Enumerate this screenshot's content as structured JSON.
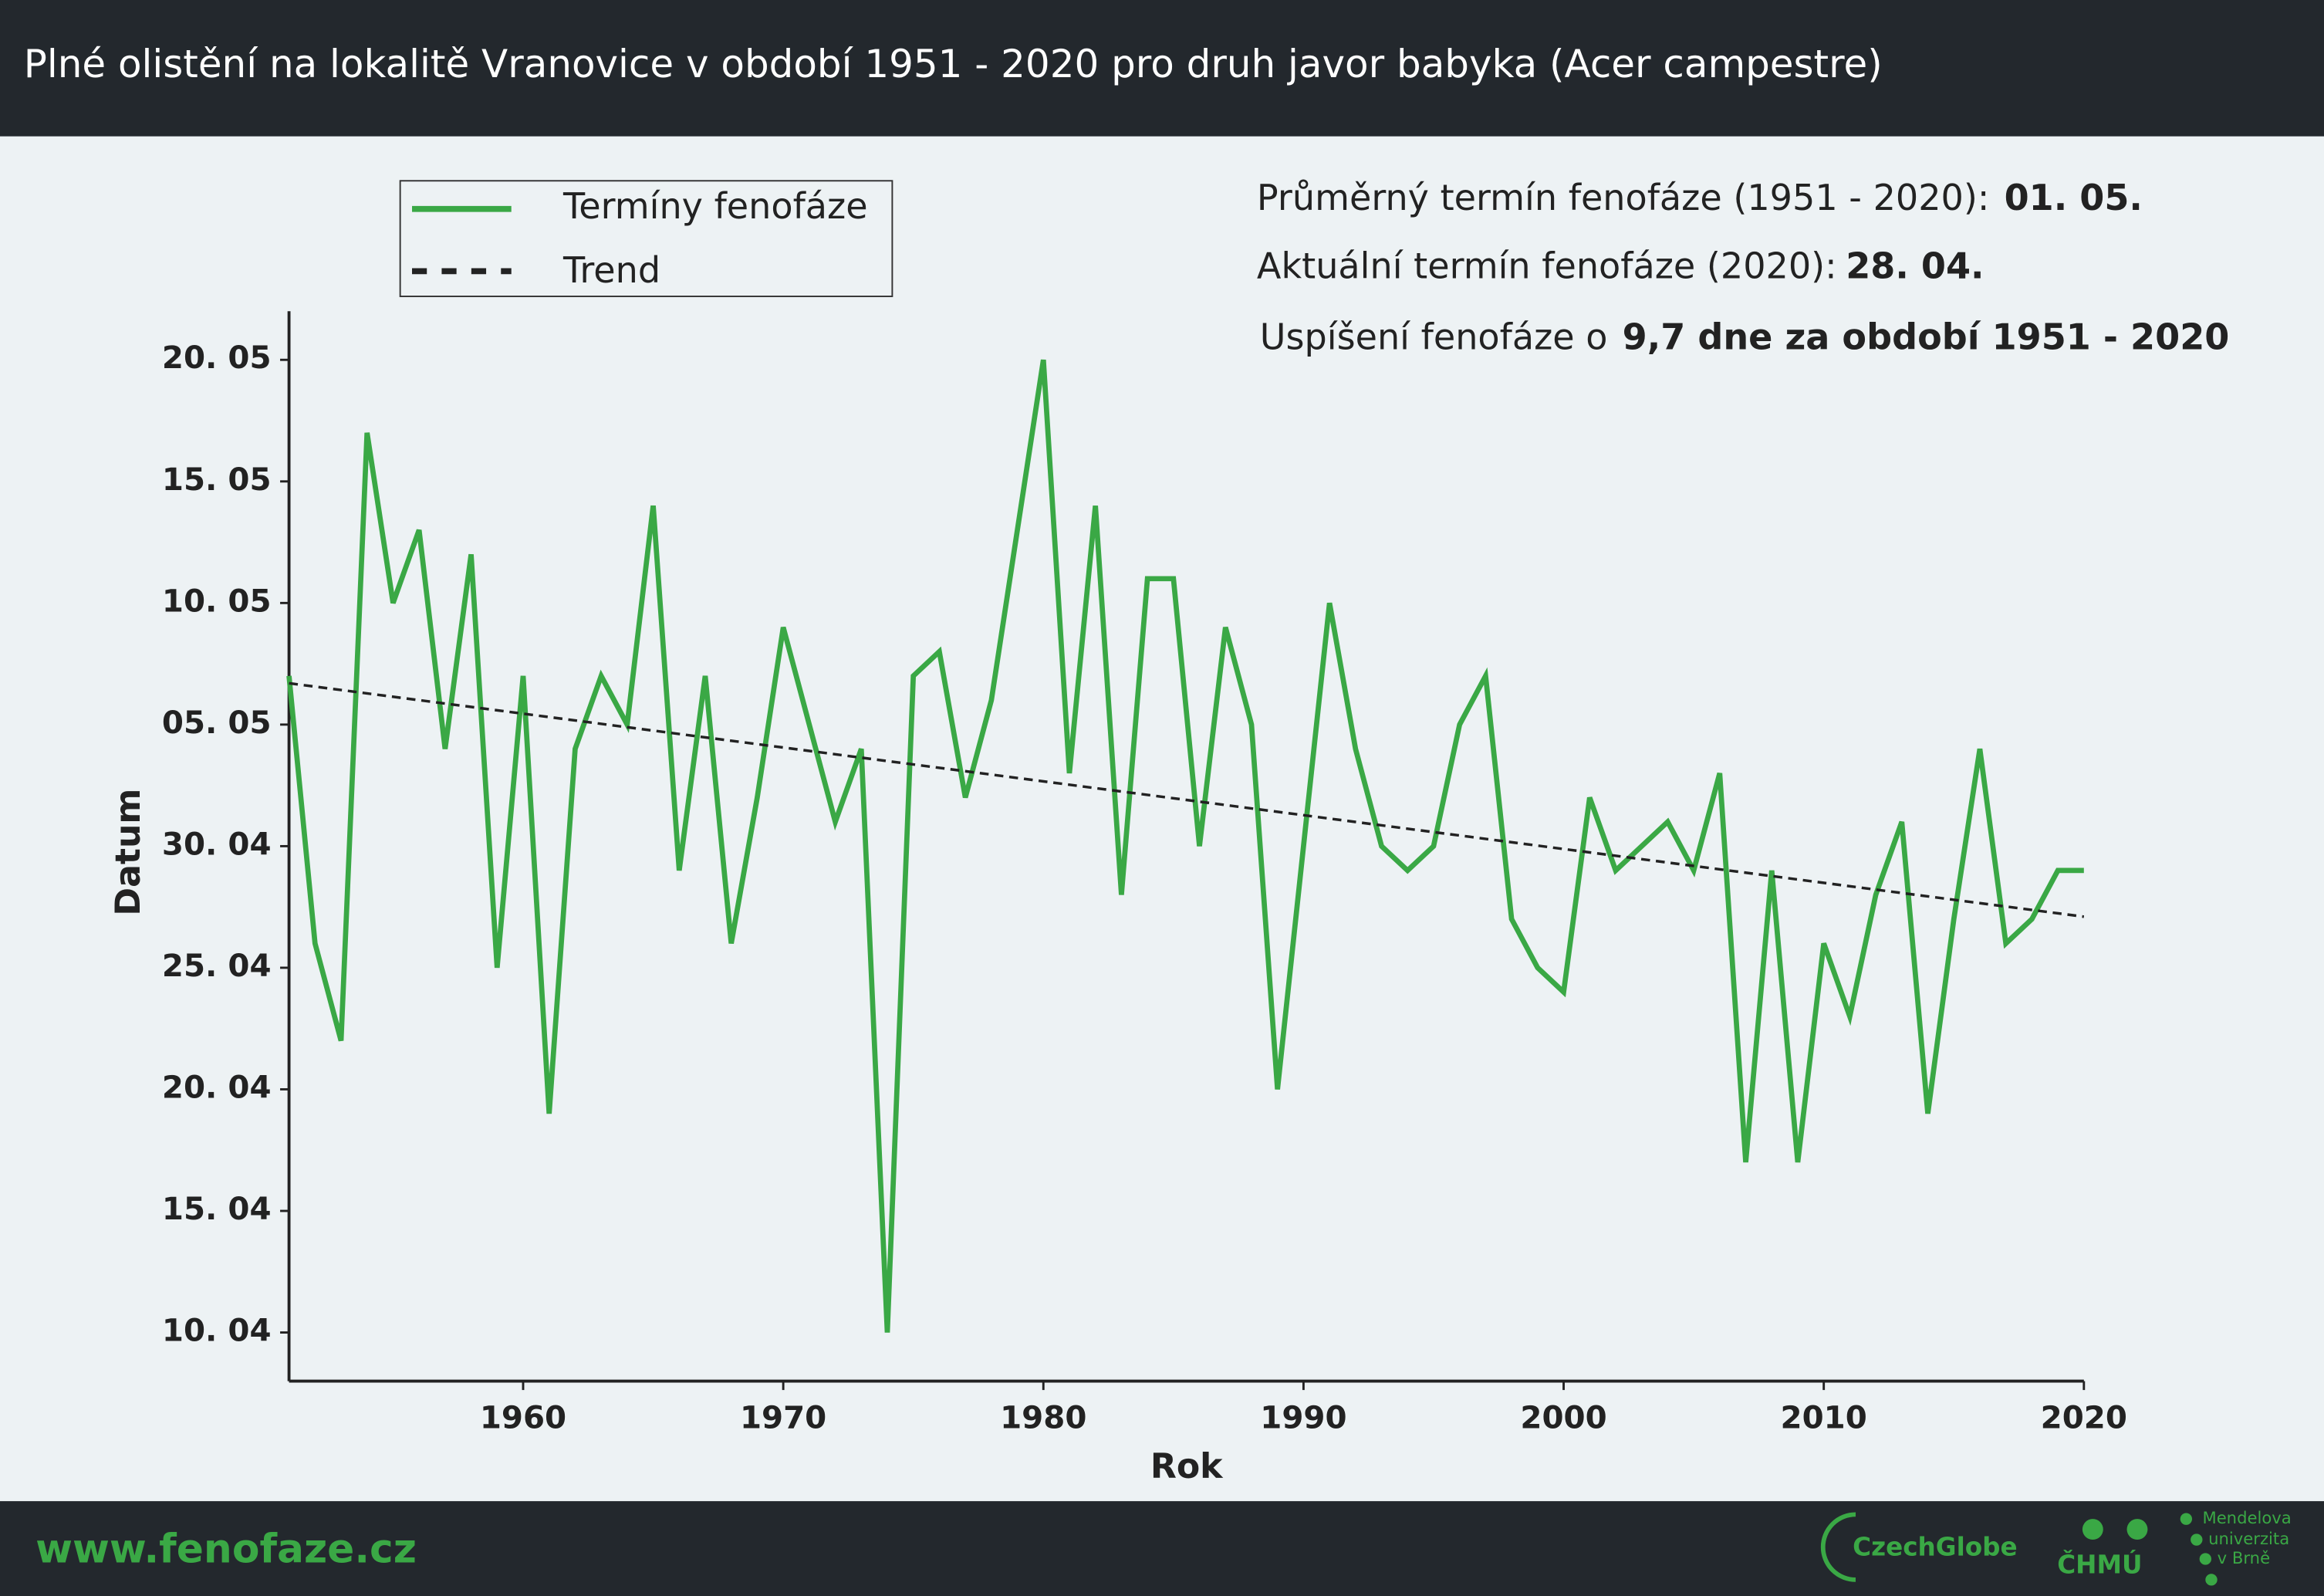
{
  "header": {
    "title": "Plné olistění na lokalitě Vranovice v období 1951 - 2020 pro druh javor babyka (Acer campestre)"
  },
  "info": {
    "mean_label": "Průměrný termín fenofáze (1951 - 2020):",
    "mean_value": "01. 05.",
    "current_label": "Aktuální termín fenofáze (2020):",
    "current_value": "28. 04.",
    "shift_label": "Uspíšení fenofáze o",
    "shift_value": "9,7 dne za období 1951 - 2020"
  },
  "chart_data": {
    "type": "line",
    "xlabel": "Rok",
    "ylabel": "Datum",
    "x": [
      1951,
      1952,
      1953,
      1954,
      1955,
      1956,
      1957,
      1958,
      1959,
      1960,
      1961,
      1962,
      1963,
      1964,
      1965,
      1966,
      1967,
      1968,
      1969,
      1970,
      1971,
      1972,
      1973,
      1974,
      1975,
      1976,
      1977,
      1978,
      1979,
      1980,
      1981,
      1982,
      1983,
      1984,
      1985,
      1986,
      1987,
      1988,
      1989,
      1990,
      1991,
      1992,
      1993,
      1994,
      1995,
      1996,
      1997,
      1998,
      1999,
      2000,
      2001,
      2002,
      2003,
      2004,
      2005,
      2006,
      2007,
      2008,
      2009,
      2010,
      2011,
      2012,
      2013,
      2014,
      2015,
      2016,
      2017,
      2018,
      2019,
      2020
    ],
    "series": [
      {
        "name": "Termíny fenofáze",
        "color": "#3aa845",
        "values": [
          127,
          116,
          112,
          137,
          130,
          133,
          124,
          132,
          115,
          127,
          109,
          124,
          127,
          125,
          134,
          119,
          127,
          116,
          122,
          129,
          125,
          121,
          124,
          100,
          127,
          128,
          122,
          126,
          133,
          140,
          123,
          134,
          118,
          131,
          131,
          120,
          129,
          125,
          110,
          120,
          130,
          124,
          120,
          119,
          120,
          125,
          127,
          117,
          115,
          114,
          122,
          119,
          120,
          121,
          119,
          123,
          107,
          119,
          107,
          116,
          113,
          118,
          121,
          109,
          117,
          124,
          116,
          117,
          119,
          119
        ]
      }
    ],
    "trend": {
      "name": "Trend",
      "color": "#222222",
      "x": [
        1951,
        2020
      ],
      "values": [
        126.7,
        117.1
      ]
    },
    "xlim": [
      1951,
      2020
    ],
    "xticks": [
      1960,
      1970,
      1980,
      1990,
      2000,
      2010,
      2020
    ],
    "ylim": [
      98,
      142
    ],
    "yticks": [
      {
        "value": 100,
        "label": "10. 04"
      },
      {
        "value": 105,
        "label": "15. 04"
      },
      {
        "value": 110,
        "label": "20. 04"
      },
      {
        "value": 115,
        "label": "25. 04"
      },
      {
        "value": 120,
        "label": "30. 04"
      },
      {
        "value": 125,
        "label": "05. 05"
      },
      {
        "value": 130,
        "label": "10. 05"
      },
      {
        "value": 135,
        "label": "15. 05"
      },
      {
        "value": 140,
        "label": "20. 05"
      }
    ],
    "grid": false,
    "legend": "upper left"
  },
  "footer": {
    "url": "www.fenofaze.cz",
    "logo1": "CzechGlobe",
    "logo2": "ČHMÚ",
    "logo3": [
      "Mendelova",
      "univerzita",
      "v Brně"
    ]
  }
}
